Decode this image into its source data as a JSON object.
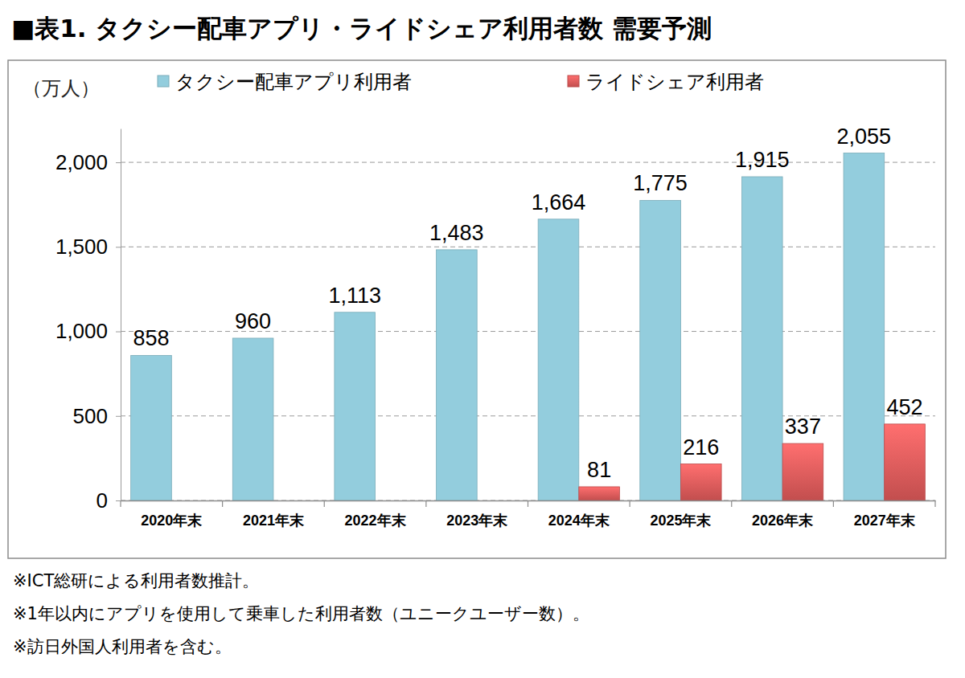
{
  "chart_data": {
    "type": "bar",
    "title": "■表1. タクシー配車アプリ・ライドシェア利用者数 需要予測",
    "y_label": "（万人）",
    "categories": [
      "2020年末",
      "2021年末",
      "2022年末",
      "2023年末",
      "2024年末",
      "2025年末",
      "2026年末",
      "2027年末"
    ],
    "series": [
      {
        "name": "タクシー配車アプリ利用者",
        "color": "#93cddd",
        "values": [
          858,
          960,
          1113,
          1483,
          1664,
          1775,
          1915,
          2055
        ],
        "value_labels": [
          "858",
          "960",
          "1,113",
          "1,483",
          "1,664",
          "1,775",
          "1,915",
          "2,055"
        ]
      },
      {
        "name": "ライドシェア利用者",
        "color": "#e05a5a",
        "values": [
          null,
          null,
          null,
          null,
          81,
          216,
          337,
          452
        ]
      }
    ],
    "ylim": [
      0,
      2200
    ],
    "yticks": [
      0,
      500,
      {
        "value": 1000,
        "label": "1,000"
      },
      {
        "value": 1500,
        "label": "1,500"
      },
      {
        "value": 2000,
        "label": "2,000"
      }
    ],
    "grid": true,
    "legend": "top",
    "data_labels": true,
    "annotations": [
      "※ICT総研による利用者数推計。",
      "※1年以内にアプリを使用して乗車した利用者数（ユニークユーザー数）。",
      "※訪日外国人利用者を含む。"
    ]
  }
}
